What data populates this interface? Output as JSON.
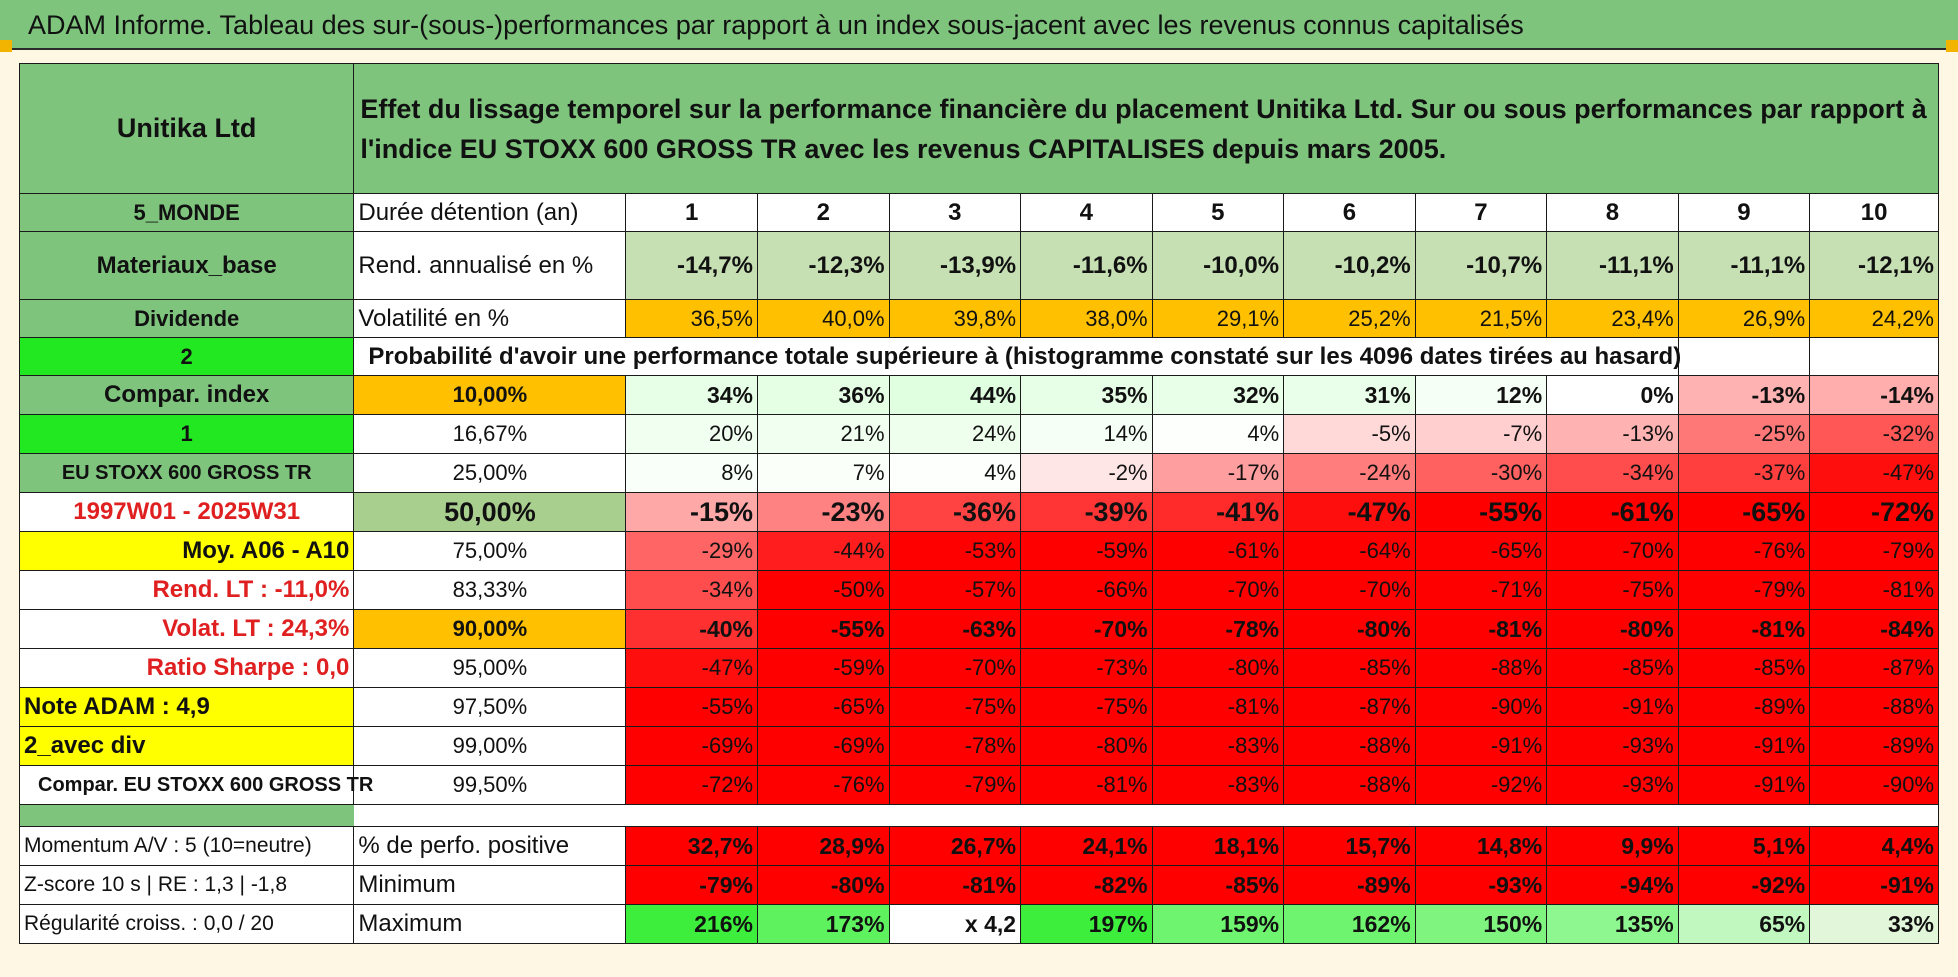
{
  "banner": "ADAM Informe. Tableau des sur-(sous-)performances par rapport à un index sous-jacent avec les revenus connus capitalisés",
  "title_cell": "Effet du lissage temporel sur la performance financière du placement Unitika Ltd. Sur ou sous performances par rapport à l'indice EU STOXX 600 GROSS TR avec les revenus CAPITALISES depuis mars 2005.",
  "side": {
    "company": "Unitika Ltd",
    "region": "5_MONDE",
    "sector": "Materiaux_base",
    "dividende": "Dividende",
    "two": "2",
    "compar": "Compar. index",
    "one": "1",
    "index": "EU STOXX 600 GROSS TR",
    "period": "1997W01 - 2025W31",
    "moy": "Moy. A06 - A10",
    "rend_lt": "Rend. LT :   -11,0%",
    "volat_lt": "Volat. LT :   24,3%",
    "sharpe": "Ratio Sharpe :    0,0",
    "note": "Note ADAM : 4,9",
    "avec_div": "2_avec div",
    "compar_full": "Compar. EU STOXX 600 GROSS TR",
    "momentum": "Momentum A/V : 5 (10=neutre)",
    "zscore": "Z-score 10 s | RE : 1,3 | -1,8",
    "regularite": "Régularité croiss. : 0,0 / 20"
  },
  "labels": {
    "duree": "Durée détention (an)",
    "rend": "Rend. annualisé en %",
    "vol": "Volatilité en %",
    "prob": "Probabilité d'avoir une performance totale supérieure à (histogramme constaté sur les 4096 dates tirées au hasard)",
    "perf_pos": "% de perfo. positive",
    "minimum": "Minimum",
    "maximum": "Maximum"
  },
  "years": [
    "1",
    "2",
    "3",
    "4",
    "5",
    "6",
    "7",
    "8",
    "9",
    "10"
  ],
  "rend": [
    "-14,7%",
    "-12,3%",
    "-13,9%",
    "-11,6%",
    "-10,0%",
    "-10,2%",
    "-10,7%",
    "-11,1%",
    "-11,1%",
    "-12,1%"
  ],
  "vol": [
    "36,5%",
    "40,0%",
    "39,8%",
    "38,0%",
    "29,1%",
    "25,2%",
    "21,5%",
    "23,4%",
    "26,9%",
    "24,2%"
  ],
  "prob_rows": [
    {
      "p": "10,00%",
      "v": [
        "34%",
        "36%",
        "44%",
        "35%",
        "32%",
        "31%",
        "12%",
        "0%",
        "-13%",
        "-14%"
      ]
    },
    {
      "p": "16,67%",
      "v": [
        "20%",
        "21%",
        "24%",
        "14%",
        "4%",
        "-5%",
        "-7%",
        "-13%",
        "-25%",
        "-32%"
      ]
    },
    {
      "p": "25,00%",
      "v": [
        "8%",
        "7%",
        "4%",
        "-2%",
        "-17%",
        "-24%",
        "-30%",
        "-34%",
        "-37%",
        "-47%"
      ]
    },
    {
      "p": "50,00%",
      "v": [
        "-15%",
        "-23%",
        "-36%",
        "-39%",
        "-41%",
        "-47%",
        "-55%",
        "-61%",
        "-65%",
        "-72%"
      ]
    },
    {
      "p": "75,00%",
      "v": [
        "-29%",
        "-44%",
        "-53%",
        "-59%",
        "-61%",
        "-64%",
        "-65%",
        "-70%",
        "-76%",
        "-79%"
      ]
    },
    {
      "p": "83,33%",
      "v": [
        "-34%",
        "-50%",
        "-57%",
        "-66%",
        "-70%",
        "-70%",
        "-71%",
        "-75%",
        "-79%",
        "-81%"
      ]
    },
    {
      "p": "90,00%",
      "v": [
        "-40%",
        "-55%",
        "-63%",
        "-70%",
        "-78%",
        "-80%",
        "-81%",
        "-80%",
        "-81%",
        "-84%"
      ]
    },
    {
      "p": "95,00%",
      "v": [
        "-47%",
        "-59%",
        "-70%",
        "-73%",
        "-80%",
        "-85%",
        "-88%",
        "-85%",
        "-85%",
        "-87%"
      ]
    },
    {
      "p": "97,50%",
      "v": [
        "-55%",
        "-65%",
        "-75%",
        "-75%",
        "-81%",
        "-87%",
        "-90%",
        "-91%",
        "-89%",
        "-88%"
      ]
    },
    {
      "p": "99,00%",
      "v": [
        "-69%",
        "-69%",
        "-78%",
        "-80%",
        "-83%",
        "-88%",
        "-91%",
        "-93%",
        "-91%",
        "-89%"
      ]
    },
    {
      "p": "99,50%",
      "v": [
        "-72%",
        "-76%",
        "-79%",
        "-81%",
        "-83%",
        "-88%",
        "-92%",
        "-93%",
        "-91%",
        "-90%"
      ]
    }
  ],
  "perf_pos": [
    "32,7%",
    "28,9%",
    "26,7%",
    "24,1%",
    "18,1%",
    "15,7%",
    "14,8%",
    "9,9%",
    "5,1%",
    "4,4%"
  ],
  "minimum": [
    "-79%",
    "-80%",
    "-81%",
    "-82%",
    "-85%",
    "-89%",
    "-93%",
    "-94%",
    "-92%",
    "-91%"
  ],
  "maximum": [
    "216%",
    "173%",
    "x 4,2",
    "197%",
    "159%",
    "162%",
    "150%",
    "135%",
    "65%",
    "33%"
  ],
  "colors": {
    "header_green": "#7ec47d",
    "bright_green": "#22e822",
    "yellow": "#ffff00",
    "orange": "#ffc000",
    "rend_green": "#c6e0b4",
    "strong_red": "#ff0000"
  }
}
